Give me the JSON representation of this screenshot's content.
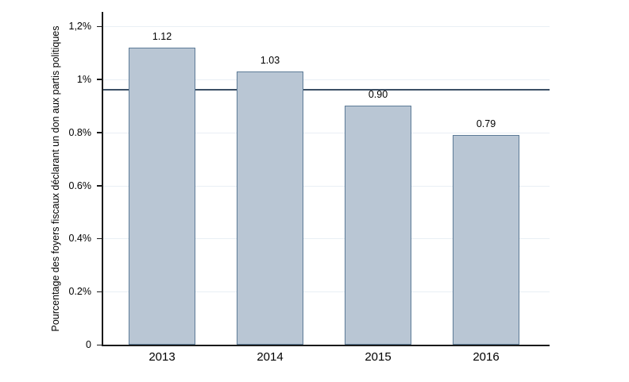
{
  "chart_data": {
    "type": "bar",
    "title": "",
    "ylabel": "Pourcentage des foyers fiscaux déclarant un don aux partis politiques",
    "xlabel": "",
    "categories": [
      "2013",
      "2014",
      "2015",
      "2016"
    ],
    "values": [
      1.12,
      1.03,
      0.9,
      0.79
    ],
    "bar_labels": [
      "1.12",
      "1.03",
      "0.90",
      "0.79"
    ],
    "ylim": [
      0,
      1.2
    ],
    "y_ticks": [
      {
        "value": 0,
        "label": "0"
      },
      {
        "value": 0.2,
        "label": "0.2%"
      },
      {
        "value": 0.4,
        "label": "0.4%"
      },
      {
        "value": 0.6,
        "label": "0.6%"
      },
      {
        "value": 0.8,
        "label": "0.8%"
      },
      {
        "value": 1.0,
        "label": "1%"
      },
      {
        "value": 1.2,
        "label": "1,2%"
      }
    ],
    "grid": true,
    "legend": "none",
    "reference_line": {
      "value": 0.96
    },
    "colors": {
      "bar_fill": "#b9c6d4",
      "bar_border": "#5d7b97",
      "reference_line": "#3c5066",
      "gridline": "#e9eff5",
      "axis": "#1a1a1a",
      "text": "#000000",
      "background": "#ffffff"
    }
  }
}
